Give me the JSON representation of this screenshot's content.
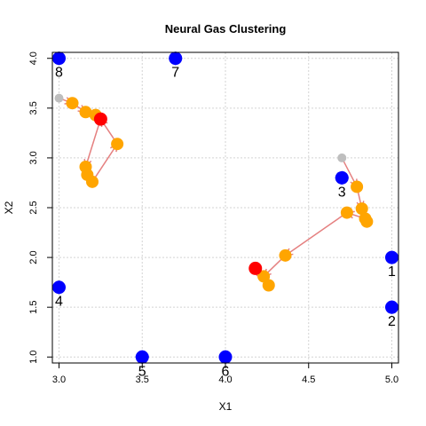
{
  "chart_data": {
    "type": "scatter",
    "title": "Neural Gas Clustering",
    "xlabel": "X1",
    "ylabel": "X2",
    "xlim": [
      2.96,
      5.04
    ],
    "ylim": [
      0.94,
      4.06
    ],
    "xticks": [
      "3.0",
      "3.5",
      "4.0",
      "4.5",
      "5.0"
    ],
    "yticks": [
      "1.0",
      "1.5",
      "2.0",
      "2.5",
      "3.0",
      "3.5",
      "4.0"
    ],
    "grid": true,
    "data_points": [
      {
        "label": "1",
        "x": 5.0,
        "y": 2.0
      },
      {
        "label": "2",
        "x": 5.0,
        "y": 1.5
      },
      {
        "label": "3",
        "x": 4.7,
        "y": 2.8
      },
      {
        "label": "4",
        "x": 3.0,
        "y": 1.7
      },
      {
        "label": "5",
        "x": 3.5,
        "y": 1.0
      },
      {
        "label": "6",
        "x": 4.0,
        "y": 1.0
      },
      {
        "label": "7",
        "x": 3.7,
        "y": 4.0
      },
      {
        "label": "8",
        "x": 3.0,
        "y": 4.0
      }
    ],
    "trajectories": [
      [
        {
          "x": 3.0,
          "y": 3.6
        },
        {
          "x": 3.08,
          "y": 3.55
        },
        {
          "x": 3.16,
          "y": 3.46
        },
        {
          "x": 3.22,
          "y": 3.43
        },
        {
          "x": 3.25,
          "y": 3.39
        },
        {
          "x": 3.16,
          "y": 2.91
        },
        {
          "x": 3.17,
          "y": 2.83
        },
        {
          "x": 3.2,
          "y": 2.76
        },
        {
          "x": 3.35,
          "y": 3.14
        },
        {
          "x": 3.25,
          "y": 3.39
        }
      ],
      [
        {
          "x": 4.7,
          "y": 3.0
        },
        {
          "x": 4.79,
          "y": 2.71
        },
        {
          "x": 4.82,
          "y": 2.49
        },
        {
          "x": 4.85,
          "y": 2.36
        },
        {
          "x": 4.84,
          "y": 2.39
        },
        {
          "x": 4.73,
          "y": 2.45
        },
        {
          "x": 4.36,
          "y": 2.02
        },
        {
          "x": 4.23,
          "y": 1.81
        },
        {
          "x": 4.26,
          "y": 1.72
        },
        {
          "x": 4.18,
          "y": 1.89
        }
      ]
    ],
    "colors": {
      "data_point": "#0000ff",
      "start": "#bebebe",
      "path_node": "#ffa500",
      "end": "#ff0000",
      "arrow": "#e58080",
      "grid": "#d3d3d3"
    }
  }
}
